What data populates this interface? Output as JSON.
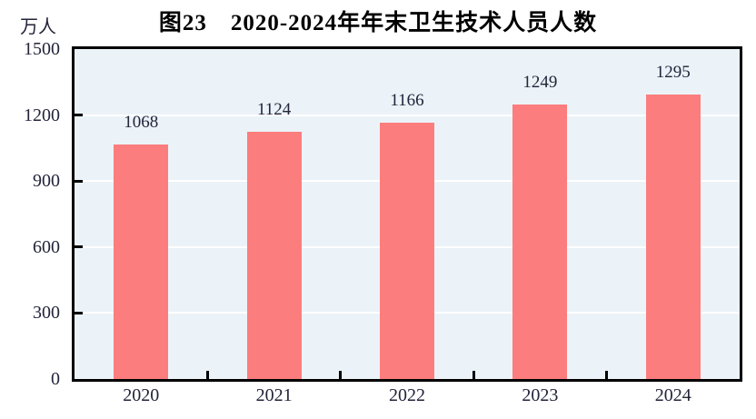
{
  "figure": {
    "title": "图23　2020-2024年年末卫生技术人员人数",
    "unit_label": "万人"
  },
  "chart_data": {
    "type": "bar",
    "title": "图23　2020-2024年年末卫生技术人员人数",
    "categories": [
      "2020",
      "2021",
      "2022",
      "2023",
      "2024"
    ],
    "values": [
      1068,
      1124,
      1166,
      1249,
      1295
    ],
    "xlabel": "",
    "ylabel": "万人",
    "ylim": [
      0,
      1500
    ],
    "yticks": [
      0,
      300,
      600,
      900,
      1200,
      1500
    ],
    "grid": true,
    "legend_position": "none",
    "colors": {
      "bar_fill": "#fc7d7d",
      "plot_background": "#ebf3f8",
      "gridline": "#ffffff",
      "axis_border": "#000000",
      "tick_label_text": "#23233a",
      "title_text": "#000000"
    }
  }
}
